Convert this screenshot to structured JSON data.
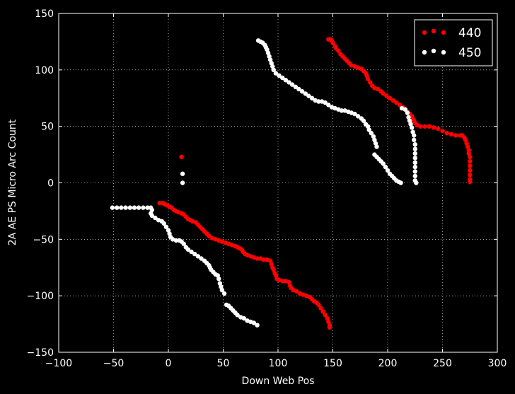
{
  "chart_data": {
    "type": "scatter",
    "xlabel": "Down Web Pos",
    "ylabel": "2A AE PS Micro Arc Count",
    "xlim": [
      -100,
      300
    ],
    "ylim": [
      -150,
      150
    ],
    "xticks": [
      -100,
      -50,
      0,
      50,
      100,
      150,
      200,
      250,
      300
    ],
    "yticks": [
      -150,
      -100,
      -50,
      0,
      50,
      100,
      150
    ],
    "xtick_labels": [
      "−100",
      "−50",
      "0",
      "50",
      "100",
      "150",
      "200",
      "250",
      "300"
    ],
    "ytick_labels": [
      "−150",
      "−100",
      "−50",
      "0",
      "50",
      "100",
      "150"
    ],
    "grid": true,
    "legend_position": "top-right",
    "series": [
      {
        "name": "440",
        "color": "#ff0000",
        "points": [
          [
            -8,
            -18
          ],
          [
            -5,
            -18
          ],
          [
            -3,
            -19
          ],
          [
            -1,
            -20
          ],
          [
            1,
            -21
          ],
          [
            3,
            -22
          ],
          [
            5,
            -24
          ],
          [
            7,
            -25
          ],
          [
            9,
            -26
          ],
          [
            12,
            -27
          ],
          [
            14,
            -28
          ],
          [
            16,
            -30
          ],
          [
            18,
            -32
          ],
          [
            20,
            -33
          ],
          [
            22,
            -34
          ],
          [
            25,
            -35
          ],
          [
            27,
            -37
          ],
          [
            29,
            -39
          ],
          [
            31,
            -41
          ],
          [
            33,
            -43
          ],
          [
            35,
            -45
          ],
          [
            37,
            -47
          ],
          [
            40,
            -49
          ],
          [
            43,
            -50
          ],
          [
            46,
            -51
          ],
          [
            49,
            -52
          ],
          [
            52,
            -53
          ],
          [
            55,
            -54
          ],
          [
            58,
            -55
          ],
          [
            61,
            -56
          ],
          [
            63,
            -57
          ],
          [
            65,
            -58
          ],
          [
            67,
            -59
          ],
          [
            68,
            -61
          ],
          [
            70,
            -63
          ],
          [
            72,
            -64
          ],
          [
            75,
            -65
          ],
          [
            78,
            -66
          ],
          [
            81,
            -67
          ],
          [
            84,
            -67
          ],
          [
            87,
            -68
          ],
          [
            90,
            -68
          ],
          [
            93,
            -69
          ],
          [
            94,
            -72
          ],
          [
            95,
            -75
          ],
          [
            96,
            -77
          ],
          [
            97,
            -80
          ],
          [
            98,
            -82
          ],
          [
            99,
            -85
          ],
          [
            101,
            -86
          ],
          [
            104,
            -87
          ],
          [
            107,
            -87
          ],
          [
            110,
            -88
          ],
          [
            111,
            -91
          ],
          [
            112,
            -93
          ],
          [
            114,
            -95
          ],
          [
            117,
            -96
          ],
          [
            120,
            -98
          ],
          [
            123,
            -99
          ],
          [
            126,
            -100
          ],
          [
            129,
            -101
          ],
          [
            131,
            -103
          ],
          [
            133,
            -105
          ],
          [
            135,
            -106
          ],
          [
            137,
            -108
          ],
          [
            139,
            -111
          ],
          [
            141,
            -114
          ],
          [
            143,
            -117
          ],
          [
            145,
            -120
          ],
          [
            146,
            -123
          ],
          [
            147,
            -126
          ],
          [
            147,
            -128
          ],
          [
            12,
            23
          ],
          [
            146,
            127
          ],
          [
            148,
            127
          ],
          [
            149,
            126
          ],
          [
            150,
            124
          ],
          [
            152,
            121
          ],
          [
            153,
            119
          ],
          [
            155,
            117
          ],
          [
            157,
            114
          ],
          [
            159,
            112
          ],
          [
            161,
            110
          ],
          [
            163,
            108
          ],
          [
            165,
            106
          ],
          [
            167,
            104
          ],
          [
            170,
            103
          ],
          [
            173,
            102
          ],
          [
            176,
            101
          ],
          [
            178,
            99
          ],
          [
            180,
            97
          ],
          [
            181,
            95
          ],
          [
            182,
            92
          ],
          [
            184,
            89
          ],
          [
            186,
            86
          ],
          [
            188,
            84
          ],
          [
            191,
            83
          ],
          [
            194,
            81
          ],
          [
            196,
            79
          ],
          [
            199,
            77
          ],
          [
            202,
            75
          ],
          [
            205,
            73
          ],
          [
            208,
            71
          ],
          [
            211,
            69
          ],
          [
            214,
            67
          ],
          [
            216,
            65
          ],
          [
            218,
            63
          ],
          [
            220,
            61
          ],
          [
            222,
            59
          ],
          [
            223,
            57
          ],
          [
            224,
            55
          ],
          [
            225,
            53
          ],
          [
            227,
            51
          ],
          [
            230,
            50
          ],
          [
            234,
            50
          ],
          [
            238,
            50
          ],
          [
            242,
            49
          ],
          [
            246,
            48
          ],
          [
            250,
            46
          ],
          [
            254,
            44
          ],
          [
            258,
            43
          ],
          [
            262,
            42
          ],
          [
            266,
            42
          ],
          [
            268,
            42
          ],
          [
            270,
            40
          ],
          [
            271,
            38
          ],
          [
            272,
            35
          ],
          [
            273,
            32
          ],
          [
            274,
            29
          ],
          [
            274,
            26
          ],
          [
            275,
            23
          ],
          [
            275,
            19
          ],
          [
            275,
            15
          ],
          [
            275,
            11
          ],
          [
            275,
            7
          ],
          [
            275,
            3
          ],
          [
            275,
            1
          ]
        ]
      },
      {
        "name": "450",
        "color": "#ffffff",
        "points": [
          [
            -51,
            -22
          ],
          [
            -47,
            -22
          ],
          [
            -43,
            -22
          ],
          [
            -39,
            -22
          ],
          [
            -35,
            -22
          ],
          [
            -31,
            -22
          ],
          [
            -27,
            -22
          ],
          [
            -23,
            -22
          ],
          [
            -19,
            -22
          ],
          [
            -16,
            -22
          ],
          [
            -15,
            -24
          ],
          [
            -16,
            -27
          ],
          [
            -15,
            -29
          ],
          [
            -12,
            -31
          ],
          [
            -9,
            -33
          ],
          [
            -6,
            -34
          ],
          [
            -4,
            -36
          ],
          [
            -2,
            -39
          ],
          [
            0,
            -42
          ],
          [
            1,
            -45
          ],
          [
            2,
            -48
          ],
          [
            4,
            -50
          ],
          [
            7,
            -51
          ],
          [
            10,
            -51
          ],
          [
            12,
            -52
          ],
          [
            14,
            -54
          ],
          [
            16,
            -57
          ],
          [
            18,
            -59
          ],
          [
            21,
            -61
          ],
          [
            24,
            -63
          ],
          [
            27,
            -65
          ],
          [
            30,
            -67
          ],
          [
            33,
            -69
          ],
          [
            35,
            -71
          ],
          [
            37,
            -73
          ],
          [
            38,
            -75
          ],
          [
            39,
            -77
          ],
          [
            41,
            -79
          ],
          [
            43,
            -81
          ],
          [
            45,
            -82
          ],
          [
            46,
            -85
          ],
          [
            47,
            -89
          ],
          [
            48,
            -92
          ],
          [
            49,
            -95
          ],
          [
            51,
            -98
          ],
          [
            53,
            -108
          ],
          [
            55,
            -109
          ],
          [
            57,
            -111
          ],
          [
            59,
            -113
          ],
          [
            61,
            -115
          ],
          [
            63,
            -117
          ],
          [
            66,
            -119
          ],
          [
            69,
            -120
          ],
          [
            72,
            -122
          ],
          [
            75,
            -123
          ],
          [
            78,
            -124
          ],
          [
            81,
            -126
          ],
          [
            13,
            8
          ],
          [
            13,
            0
          ],
          [
            82,
            126
          ],
          [
            84,
            125
          ],
          [
            86,
            124
          ],
          [
            88,
            122
          ],
          [
            89,
            120
          ],
          [
            90,
            118
          ],
          [
            91,
            115
          ],
          [
            92,
            112
          ],
          [
            93,
            109
          ],
          [
            94,
            106
          ],
          [
            95,
            103
          ],
          [
            96,
            100
          ],
          [
            98,
            97
          ],
          [
            101,
            95
          ],
          [
            104,
            93
          ],
          [
            107,
            91
          ],
          [
            110,
            89
          ],
          [
            113,
            87
          ],
          [
            116,
            85
          ],
          [
            119,
            83
          ],
          [
            122,
            81
          ],
          [
            125,
            79
          ],
          [
            128,
            77
          ],
          [
            131,
            75
          ],
          [
            134,
            73
          ],
          [
            137,
            72
          ],
          [
            140,
            72
          ],
          [
            143,
            71
          ],
          [
            146,
            69
          ],
          [
            149,
            67
          ],
          [
            152,
            66
          ],
          [
            155,
            65
          ],
          [
            158,
            64
          ],
          [
            161,
            64
          ],
          [
            164,
            63
          ],
          [
            167,
            62
          ],
          [
            170,
            61
          ],
          [
            173,
            59
          ],
          [
            176,
            57
          ],
          [
            178,
            55
          ],
          [
            180,
            52
          ],
          [
            182,
            50
          ],
          [
            183,
            47
          ],
          [
            185,
            44
          ],
          [
            187,
            41
          ],
          [
            188,
            38
          ],
          [
            189,
            35
          ],
          [
            190,
            32
          ],
          [
            188,
            25
          ],
          [
            190,
            23
          ],
          [
            192,
            21
          ],
          [
            194,
            19
          ],
          [
            196,
            17
          ],
          [
            198,
            14
          ],
          [
            200,
            11
          ],
          [
            202,
            8
          ],
          [
            204,
            6
          ],
          [
            206,
            4
          ],
          [
            208,
            2
          ],
          [
            210,
            1
          ],
          [
            212,
            0
          ],
          [
            213,
            66
          ],
          [
            216,
            65
          ],
          [
            218,
            62
          ],
          [
            219,
            58
          ],
          [
            220,
            55
          ],
          [
            221,
            52
          ],
          [
            222,
            49
          ],
          [
            223,
            45
          ],
          [
            224,
            42
          ],
          [
            224,
            38
          ],
          [
            225,
            34
          ],
          [
            225,
            30
          ],
          [
            225,
            26
          ],
          [
            225,
            22
          ],
          [
            225,
            18
          ],
          [
            225,
            14
          ],
          [
            225,
            10
          ],
          [
            225,
            6
          ],
          [
            225,
            2
          ],
          [
            226,
            0
          ]
        ]
      }
    ]
  }
}
